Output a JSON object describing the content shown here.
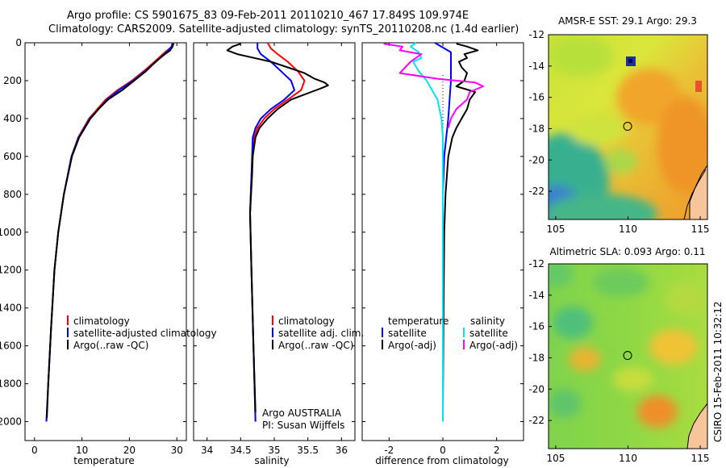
{
  "title": {
    "line1": "Argo profile: CS 5901675_83 09-Feb-2011 20110210_467 17.849S 109.974E",
    "line2": "Climatology: CARS2009. Satellite-adjusted climatology: synTS_20110208.nc (1.4d earlier)"
  },
  "footer_note": "CSIRO 15-Feb-2011 10:32:12",
  "colors": {
    "climatology": "#ff0000",
    "satellite": "#0000ff",
    "argo": "#000000",
    "cyan": "#00e5ee",
    "magenta": "#ff00ff"
  },
  "chart_data": [
    {
      "id": "temperature",
      "type": "line",
      "xlabel": "temperature",
      "ylabel": "",
      "xlim": [
        -2,
        32
      ],
      "ylim": [
        2100,
        0
      ],
      "xticks": [
        0,
        10,
        20,
        30
      ],
      "yticks": [
        0,
        200,
        400,
        600,
        800,
        1000,
        1200,
        1400,
        1600,
        1800,
        2000
      ],
      "legend": {
        "position": "bottom-right",
        "entries": [
          "climatology",
          "satellite-adjusted climatology",
          "Argo(..raw -QC)"
        ]
      },
      "series": [
        {
          "name": "climatology",
          "color": "#ff0000",
          "depth": [
            0,
            20,
            50,
            100,
            150,
            200,
            250,
            300,
            400,
            500,
            600,
            800,
            1000,
            1200,
            1500,
            1800,
            2000
          ],
          "values": [
            29.4,
            29.0,
            27.5,
            25.3,
            23.0,
            20.5,
            17.5,
            15.0,
            11.5,
            9.2,
            7.8,
            6.2,
            5.0,
            4.2,
            3.5,
            2.9,
            2.5
          ]
        },
        {
          "name": "satellite-adjusted climatology",
          "color": "#0000ff",
          "depth": [
            0,
            20,
            50,
            100,
            150,
            200,
            250,
            300,
            400,
            500,
            600,
            800,
            1000,
            1200,
            1500,
            1800,
            2000
          ],
          "values": [
            29.1,
            28.9,
            27.8,
            25.6,
            23.3,
            20.8,
            17.8,
            15.3,
            11.7,
            9.3,
            7.8,
            6.2,
            5.0,
            4.2,
            3.5,
            2.9,
            2.5
          ]
        },
        {
          "name": "Argo(..raw -QC)",
          "color": "#000000",
          "depth": [
            5,
            20,
            40,
            60,
            100,
            150,
            200,
            250,
            300,
            350,
            400,
            500,
            600,
            800,
            1000,
            1200,
            1500,
            1800,
            1980
          ],
          "values": [
            29.3,
            29.1,
            28.6,
            27.5,
            25.5,
            23.5,
            21.0,
            18.5,
            15.5,
            13.5,
            11.8,
            9.4,
            7.9,
            6.2,
            5.0,
            4.2,
            3.5,
            2.9,
            2.6
          ]
        }
      ]
    },
    {
      "id": "salinity",
      "type": "line",
      "xlabel": "salinity",
      "ylabel": "",
      "xlim": [
        33.8,
        36.2
      ],
      "ylim": [
        2100,
        0
      ],
      "xticks": [
        34,
        34.5,
        35,
        35.5,
        36
      ],
      "yticks": [
        0,
        200,
        400,
        600,
        800,
        1000,
        1200,
        1400,
        1600,
        1800,
        2000
      ],
      "legend": {
        "position": "bottom-right",
        "entries": [
          "climatology",
          "satellite adj. clim.",
          "Argo(..raw -QC)"
        ]
      },
      "annotation": {
        "line1": "Argo AUSTRALIA",
        "line2": "PI: Susan Wijffels"
      },
      "series": [
        {
          "name": "climatology",
          "color": "#ff0000",
          "depth": [
            0,
            30,
            60,
            100,
            150,
            200,
            250,
            300,
            350,
            400,
            450,
            500,
            600,
            700,
            900,
            1200,
            1600,
            2000
          ],
          "values": [
            34.9,
            34.95,
            35.05,
            35.2,
            35.35,
            35.45,
            35.4,
            35.2,
            35.0,
            34.85,
            34.75,
            34.7,
            34.68,
            34.66,
            34.64,
            34.66,
            34.69,
            34.72
          ]
        },
        {
          "name": "satellite adj. clim.",
          "color": "#0000ff",
          "depth": [
            0,
            30,
            60,
            100,
            150,
            200,
            250,
            300,
            350,
            400,
            450,
            500,
            600,
            700,
            900,
            1200,
            1600,
            2000
          ],
          "values": [
            34.75,
            34.75,
            34.8,
            34.95,
            35.1,
            35.25,
            35.3,
            35.15,
            34.95,
            34.8,
            34.72,
            34.68,
            34.67,
            34.66,
            34.64,
            34.66,
            34.69,
            34.72
          ]
        },
        {
          "name": "Argo(..raw -QC)",
          "color": "#000000",
          "depth": [
            5,
            20,
            40,
            60,
            80,
            100,
            130,
            160,
            190,
            210,
            225,
            240,
            260,
            300,
            350,
            400,
            450,
            500,
            550,
            600,
            700,
            900,
            1200,
            1600,
            1950
          ],
          "values": [
            34.5,
            34.38,
            34.3,
            34.45,
            34.7,
            34.95,
            35.2,
            35.45,
            35.6,
            35.75,
            35.8,
            35.7,
            35.55,
            35.25,
            35.05,
            34.9,
            34.78,
            34.72,
            34.7,
            34.68,
            34.67,
            34.64,
            34.66,
            34.69,
            34.72
          ]
        }
      ]
    },
    {
      "id": "difference",
      "type": "line",
      "xlabel": "difference from climatology",
      "ylabel": "",
      "xlim": [
        -3,
        3
      ],
      "ylim": [
        2100,
        0
      ],
      "xticks": [
        -2,
        0,
        2
      ],
      "yticks": [
        0,
        200,
        400,
        600,
        800,
        1000,
        1200,
        1400,
        1600,
        1800,
        2000
      ],
      "legend": {
        "position": "bottom",
        "temp_header": "temperature",
        "sal_header": "salinity",
        "entries_temp": [
          "satellite",
          "Argo(-adj)"
        ],
        "entries_sal": [
          "satellite",
          "Argo(-adj)"
        ]
      },
      "series": [
        {
          "name": "temperature satellite",
          "color": "#0000ff",
          "depth": [
            0,
            50,
            100,
            200,
            400,
            600,
            800,
            1000,
            1500,
            2000
          ],
          "values": [
            -0.3,
            0.3,
            0.3,
            0.3,
            0.2,
            0.05,
            0.0,
            0.0,
            0.0,
            0.0
          ]
        },
        {
          "name": "temperature Argo(-adj)",
          "color": "#000000",
          "depth": [
            5,
            20,
            40,
            60,
            80,
            100,
            130,
            160,
            200,
            230,
            260,
            300,
            350,
            400,
            450,
            500,
            600,
            700,
            800,
            1000,
            1500,
            1950
          ],
          "values": [
            0.5,
            0.9,
            1.3,
            0.8,
            0.9,
            0.6,
            0.7,
            0.9,
            0.8,
            0.5,
            1.2,
            1.0,
            0.9,
            0.7,
            0.5,
            0.35,
            0.2,
            0.15,
            0.1,
            0.05,
            0.02,
            0.0
          ]
        },
        {
          "name": "salinity satellite",
          "color": "#00e5ee",
          "depth": [
            0,
            20,
            50,
            80,
            100,
            150,
            200,
            300,
            400,
            500,
            600,
            800,
            1000,
            1500,
            2000
          ],
          "values": [
            -1.0,
            -1.2,
            -0.9,
            -0.8,
            -1.1,
            -0.9,
            -0.6,
            -0.2,
            -0.05,
            0.0,
            0.0,
            0.0,
            0.0,
            0.0,
            0.0
          ]
        },
        {
          "name": "salinity Argo(-adj)",
          "color": "#ff00ff",
          "depth": [
            5,
            20,
            40,
            60,
            80,
            100,
            130,
            160,
            190,
            210,
            230,
            260,
            300,
            350,
            400,
            450
          ],
          "values": [
            -2.2,
            -1.5,
            -1.6,
            -0.8,
            -1.0,
            -1.2,
            -1.4,
            -1.6,
            -0.2,
            1.2,
            1.5,
            1.0,
            0.9,
            0.5,
            0.3,
            0.2
          ]
        }
      ]
    },
    {
      "id": "sst-map",
      "type": "heatmap",
      "title": "AMSR-E SST: 29.1 Argo: 29.3",
      "xlabel": "",
      "ylabel": "",
      "xlim": [
        104.5,
        115.5
      ],
      "ylim": [
        -23.8,
        -12
      ],
      "xticks": [
        105,
        110,
        115
      ],
      "yticks": [
        -12,
        -14,
        -16,
        -18,
        -20,
        -22
      ],
      "marker": {
        "lon": 109.974,
        "lat": -17.849
      }
    },
    {
      "id": "sla-map",
      "type": "heatmap",
      "title": "Altimetric SLA: 0.093 Argo: 0.11",
      "xlabel": "",
      "ylabel": "",
      "xlim": [
        104.5,
        115.5
      ],
      "ylim": [
        -23.8,
        -12
      ],
      "xticks": [
        105,
        110,
        115
      ],
      "yticks": [
        -12,
        -14,
        -16,
        -18,
        -20,
        -22
      ],
      "marker": {
        "lon": 109.974,
        "lat": -17.849
      }
    }
  ]
}
